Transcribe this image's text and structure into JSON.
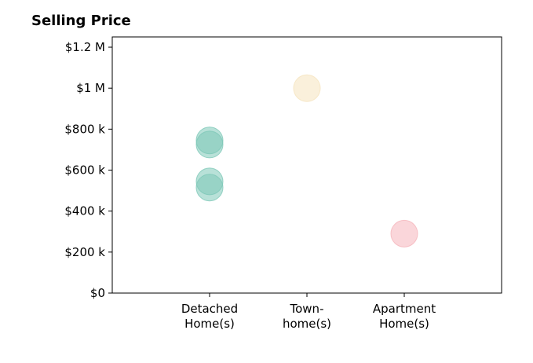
{
  "chart_data": {
    "type": "scatter",
    "title": "Selling Price",
    "xlabel": "",
    "ylabel": "",
    "categories": [
      [
        "Detached",
        "Home(s)"
      ],
      [
        "Town-",
        "home(s)"
      ],
      [
        "Apartment",
        "Home(s)"
      ]
    ],
    "y_ticks": [
      {
        "value": 0,
        "label": "$0"
      },
      {
        "value": 200000,
        "label": "$200 k"
      },
      {
        "value": 400000,
        "label": "$400 k"
      },
      {
        "value": 600000,
        "label": "$600 k"
      },
      {
        "value": 800000,
        "label": "$800 k"
      },
      {
        "value": 1000000,
        "label": "$1 M"
      },
      {
        "value": 1200000,
        "label": "$1.2 M"
      }
    ],
    "ylim": [
      0,
      1250000
    ],
    "points": [
      {
        "category": 0,
        "y": 745000,
        "color": "#7ec8b8"
      },
      {
        "category": 0,
        "y": 725000,
        "color": "#7ec8b8"
      },
      {
        "category": 0,
        "y": 545000,
        "color": "#7ec8b8"
      },
      {
        "category": 0,
        "y": 515000,
        "color": "#7ec8b8"
      },
      {
        "category": 1,
        "y": 1000000,
        "color": "#f5e3be"
      },
      {
        "category": 2,
        "y": 290000,
        "color": "#f5b5bb"
      }
    ],
    "grid": false,
    "legend": "none"
  }
}
